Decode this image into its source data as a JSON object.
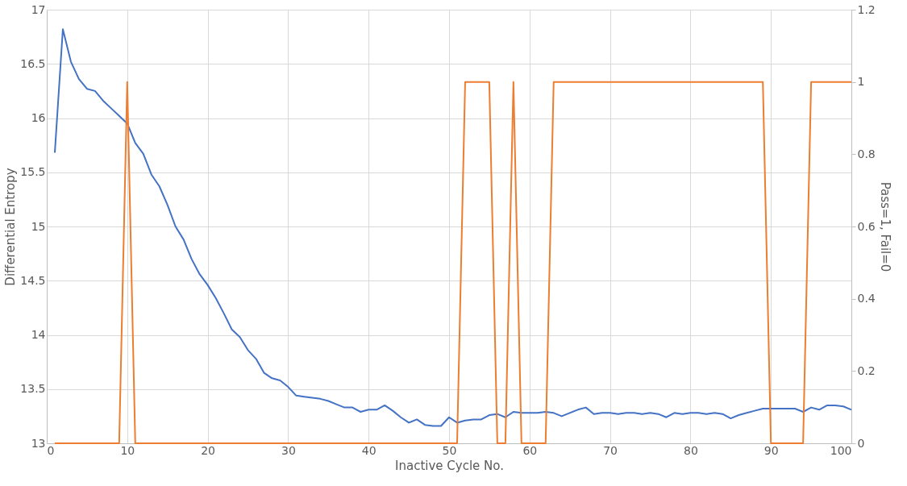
{
  "chart_data": {
    "type": "line",
    "xlabel": "Inactive Cycle No.",
    "ylabel": "Differential Entropy",
    "y2label": "Pass=1, Fail=0",
    "x": [
      1,
      2,
      3,
      4,
      5,
      6,
      7,
      8,
      9,
      10,
      11,
      12,
      13,
      14,
      15,
      16,
      17,
      18,
      19,
      20,
      21,
      22,
      23,
      24,
      25,
      26,
      27,
      28,
      29,
      30,
      31,
      32,
      33,
      34,
      35,
      36,
      37,
      38,
      39,
      40,
      41,
      42,
      43,
      44,
      45,
      46,
      47,
      48,
      49,
      50,
      51,
      52,
      53,
      54,
      55,
      56,
      57,
      58,
      59,
      60,
      61,
      62,
      63,
      64,
      65,
      66,
      67,
      68,
      69,
      70,
      71,
      72,
      73,
      74,
      75,
      76,
      77,
      78,
      79,
      80,
      81,
      82,
      83,
      84,
      85,
      86,
      87,
      88,
      89,
      90,
      91,
      92,
      93,
      94,
      95,
      96,
      97,
      98,
      99,
      100
    ],
    "series": [
      {
        "color": "#4472c4",
        "values": [
          15.68,
          16.82,
          16.52,
          16.36,
          16.27,
          16.25,
          16.16,
          16.09,
          16.02,
          15.95,
          15.77,
          15.67,
          15.48,
          15.37,
          15.2,
          15.0,
          14.88,
          14.7,
          14.56,
          14.46,
          14.34,
          14.2,
          14.05,
          13.98,
          13.86,
          13.78,
          13.65,
          13.6,
          13.58,
          13.52,
          13.44,
          13.43,
          13.42,
          13.41,
          13.39,
          13.36,
          13.33,
          13.33,
          13.29,
          13.31,
          13.31,
          13.35,
          13.3,
          13.24,
          13.19,
          13.22,
          13.17,
          13.16,
          13.16,
          13.24,
          13.19,
          13.21,
          13.22,
          13.22,
          13.26,
          13.27,
          13.24,
          13.29,
          13.28,
          13.28,
          13.28,
          13.29,
          13.28,
          13.25,
          13.28,
          13.31,
          13.33,
          13.27,
          13.28,
          13.28,
          13.27,
          13.28,
          13.28,
          13.27,
          13.28,
          13.27,
          13.24,
          13.28,
          13.27,
          13.28,
          13.28,
          13.27,
          13.28,
          13.27,
          13.23,
          13.26,
          13.28,
          13.3,
          13.32,
          13.32,
          13.32,
          13.32,
          13.32,
          13.29,
          13.33,
          13.31,
          13.35,
          13.35,
          13.34,
          13.31
        ]
      },
      {
        "color": "#ed7d31",
        "axis": "y2",
        "values": [
          0,
          0,
          0,
          0,
          0,
          0,
          0,
          0,
          0,
          1,
          0,
          0,
          0,
          0,
          0,
          0,
          0,
          0,
          0,
          0,
          0,
          0,
          0,
          0,
          0,
          0,
          0,
          0,
          0,
          0,
          0,
          0,
          0,
          0,
          0,
          0,
          0,
          0,
          0,
          0,
          0,
          0,
          0,
          0,
          0,
          0,
          0,
          0,
          0,
          0,
          0,
          1,
          1,
          1,
          1,
          0,
          0,
          1,
          0,
          0,
          0,
          0,
          1,
          1,
          1,
          1,
          1,
          1,
          1,
          1,
          1,
          1,
          1,
          1,
          1,
          1,
          1,
          1,
          1,
          1,
          1,
          1,
          1,
          1,
          1,
          1,
          1,
          1,
          1,
          0,
          0,
          0,
          0,
          0,
          1,
          1,
          1,
          1,
          1,
          1
        ]
      }
    ],
    "xlim": [
      0,
      100
    ],
    "xticks": [
      0,
      10,
      20,
      30,
      40,
      50,
      60,
      70,
      80,
      90,
      100
    ],
    "ylim": [
      13,
      17
    ],
    "yticks": [
      13,
      13.5,
      14,
      14.5,
      15,
      15.5,
      16,
      16.5,
      17
    ],
    "y2lim": [
      0,
      1.2
    ],
    "y2ticks": [
      0,
      0.2,
      0.4,
      0.6,
      0.8,
      1,
      1.2
    ],
    "grid": true,
    "marker": "none",
    "line_style": "solid"
  }
}
